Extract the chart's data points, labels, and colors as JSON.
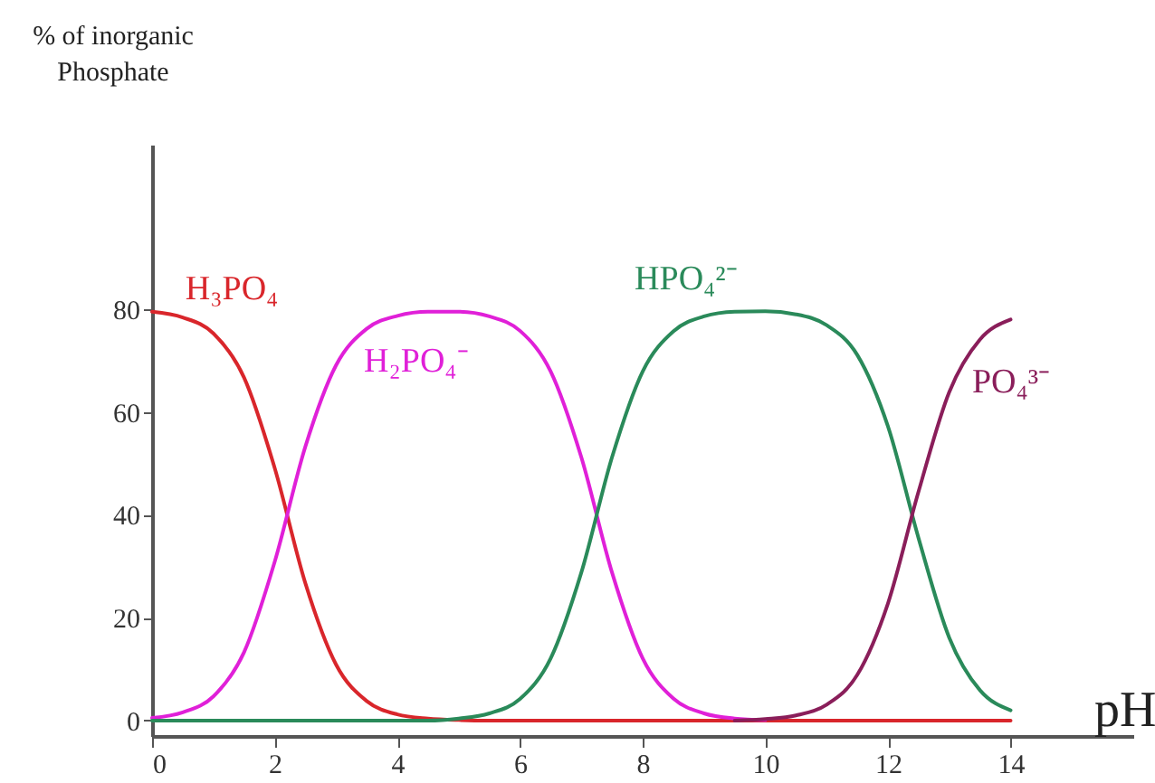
{
  "chart_data": {
    "type": "line",
    "xlabel": "pH",
    "ylabel": "% of inorganic Phosphate",
    "x": [
      0,
      0.5,
      1,
      1.5,
      2,
      2.5,
      3,
      3.5,
      4,
      4.5,
      5,
      5.5,
      6,
      6.5,
      7,
      7.5,
      8,
      8.5,
      9,
      9.5,
      10,
      10.5,
      11,
      11.5,
      12,
      12.5,
      13,
      13.5,
      14
    ],
    "series": [
      {
        "name": "H₃PO₄",
        "color": "#d9262b",
        "values": [
          79.5,
          78.4,
          75.3,
          66.7,
          49.1,
          26.7,
          10.9,
          3.8,
          1.2,
          0.4,
          0.1,
          0,
          0,
          0,
          0,
          0,
          0,
          0,
          0,
          0,
          0,
          0,
          0,
          0,
          0,
          0,
          0,
          0,
          0
        ]
      },
      {
        "name": "H₂PO₄⁻",
        "color": "#e020d8",
        "values": [
          0.5,
          1.6,
          4.7,
          13.3,
          30.9,
          53.3,
          69.1,
          76.2,
          78.7,
          79.5,
          79.5,
          78.6,
          75.8,
          67.9,
          51.2,
          28.8,
          12.1,
          4.3,
          1.4,
          0.4,
          0.1,
          null,
          null,
          null,
          null,
          null,
          null,
          null,
          null
        ]
      },
      {
        "name": "HPO₄²⁻",
        "color": "#2a8a5a",
        "values": [
          0,
          0,
          0,
          0,
          0,
          0,
          0,
          0,
          0,
          0,
          0.4,
          1.4,
          4.2,
          12.1,
          28.8,
          51.2,
          67.9,
          75.7,
          78.6,
          79.5,
          79.6,
          79,
          76.9,
          71.1,
          57.2,
          35.4,
          16.1,
          5.9,
          2
        ]
      },
      {
        "name": "PO₄³⁻",
        "color": "#8a1e5a",
        "values": [
          null,
          null,
          null,
          null,
          null,
          null,
          null,
          null,
          null,
          null,
          null,
          null,
          null,
          null,
          null,
          null,
          null,
          null,
          null,
          0,
          0.3,
          1,
          3.1,
          8.9,
          22.8,
          44.6,
          63.9,
          74.1,
          78
        ]
      }
    ],
    "xlim": [
      0,
      16
    ],
    "ylim": [
      -3,
      112
    ],
    "xticks": [
      0,
      2,
      4,
      6,
      8,
      10,
      12,
      14
    ],
    "yticks": [
      0,
      20,
      40,
      60,
      80
    ],
    "grid": false,
    "legend": false,
    "marker": "none",
    "line_style": "solid"
  }
}
